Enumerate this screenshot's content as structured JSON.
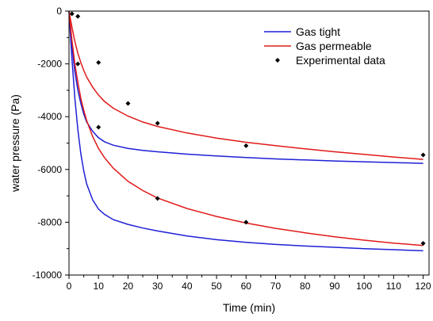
{
  "chart_data": {
    "type": "line",
    "xlabel": "Time (min)",
    "ylabel": "water pressure (Pa)",
    "xlim": [
      0,
      122
    ],
    "ylim": [
      -10000,
      0
    ],
    "xticks": [
      0,
      10,
      20,
      30,
      40,
      50,
      60,
      70,
      80,
      90,
      100,
      110,
      120
    ],
    "yticks": [
      0,
      -2000,
      -4000,
      -6000,
      -8000,
      -10000
    ],
    "legend_position": "top-right",
    "grid": false,
    "legend": [
      {
        "label": "Gas tight",
        "color": "#1f1fd6",
        "kind": "line"
      },
      {
        "label": "Gas permeable",
        "color": "#e01a1a",
        "kind": "line"
      },
      {
        "label": "Experimental data",
        "color": "#000000",
        "kind": "marker"
      }
    ],
    "series": [
      {
        "legend_index": 0,
        "curve": "upper",
        "x": [
          0,
          1,
          2,
          3,
          4,
          5,
          6,
          8,
          10,
          12,
          15,
          20,
          25,
          30,
          40,
          50,
          60,
          70,
          80,
          90,
          100,
          110,
          120
        ],
        "y": [
          0,
          -1300,
          -2300,
          -3000,
          -3500,
          -3900,
          -4200,
          -4550,
          -4800,
          -4950,
          -5080,
          -5200,
          -5280,
          -5330,
          -5420,
          -5490,
          -5550,
          -5600,
          -5640,
          -5680,
          -5710,
          -5740,
          -5770
        ]
      },
      {
        "legend_index": 0,
        "curve": "lower",
        "x": [
          0,
          1,
          2,
          3,
          4,
          5,
          6,
          8,
          10,
          12,
          15,
          20,
          25,
          30,
          40,
          50,
          60,
          70,
          80,
          90,
          100,
          110,
          120
        ],
        "y": [
          0,
          -1800,
          -3300,
          -4500,
          -5400,
          -6050,
          -6550,
          -7150,
          -7500,
          -7700,
          -7900,
          -8080,
          -8220,
          -8330,
          -8520,
          -8660,
          -8760,
          -8840,
          -8900,
          -8950,
          -9000,
          -9040,
          -9080
        ]
      },
      {
        "legend_index": 1,
        "curve": "upper",
        "x": [
          0,
          1,
          2,
          3,
          4,
          5,
          6,
          8,
          10,
          12,
          15,
          20,
          25,
          30,
          40,
          50,
          60,
          70,
          80,
          90,
          100,
          110,
          120
        ],
        "y": [
          0,
          -600,
          -1150,
          -1600,
          -1950,
          -2250,
          -2500,
          -2880,
          -3180,
          -3420,
          -3680,
          -3980,
          -4200,
          -4370,
          -4620,
          -4810,
          -4970,
          -5100,
          -5220,
          -5330,
          -5430,
          -5530,
          -5620
        ]
      },
      {
        "legend_index": 1,
        "curve": "lower",
        "x": [
          0,
          1,
          2,
          3,
          4,
          5,
          6,
          8,
          10,
          12,
          15,
          20,
          25,
          30,
          40,
          50,
          60,
          70,
          80,
          90,
          100,
          110,
          120
        ],
        "y": [
          0,
          -1100,
          -2000,
          -2700,
          -3300,
          -3750,
          -4150,
          -4750,
          -5200,
          -5550,
          -5950,
          -6450,
          -6800,
          -7080,
          -7480,
          -7780,
          -8030,
          -8230,
          -8400,
          -8550,
          -8680,
          -8790,
          -8880
        ]
      }
    ],
    "points": [
      {
        "x": 1,
        "y": -100
      },
      {
        "x": 3,
        "y": -200
      },
      {
        "x": 3,
        "y": -2000
      },
      {
        "x": 10,
        "y": -1950
      },
      {
        "x": 10,
        "y": -4400
      },
      {
        "x": 20,
        "y": -3500
      },
      {
        "x": 30,
        "y": -4250
      },
      {
        "x": 30,
        "y": -7100
      },
      {
        "x": 60,
        "y": -5100
      },
      {
        "x": 60,
        "y": -8000
      },
      {
        "x": 120,
        "y": -5450
      },
      {
        "x": 120,
        "y": -8800
      }
    ]
  }
}
